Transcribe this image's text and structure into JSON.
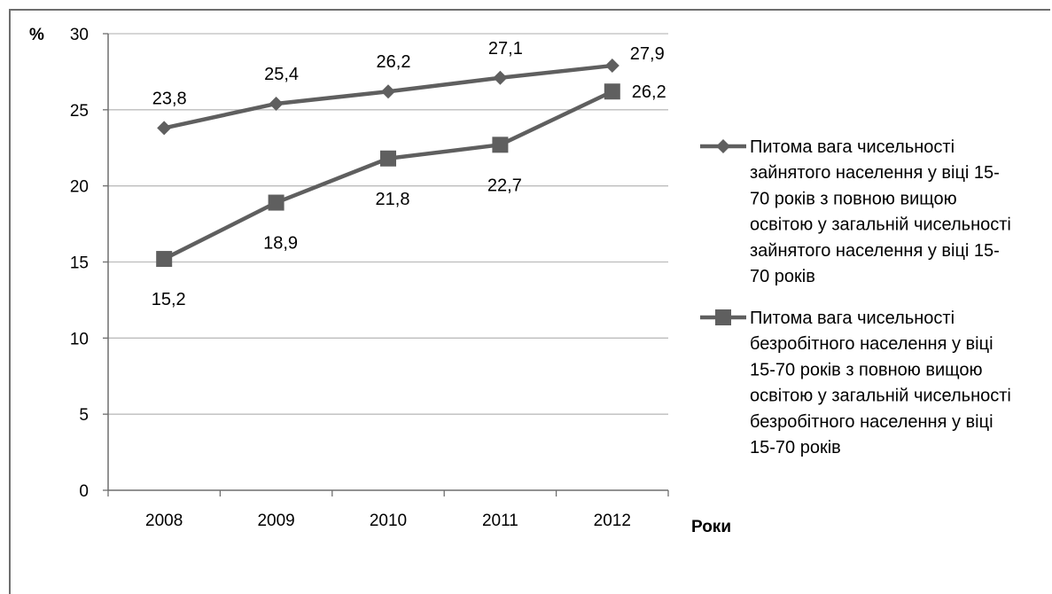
{
  "chart_data": {
    "type": "line",
    "categories": [
      "2008",
      "2009",
      "2010",
      "2011",
      "2012"
    ],
    "ylabel": "%",
    "xlabel": "Роки",
    "ylim": [
      0,
      30
    ],
    "yticks": [
      "0",
      "5",
      "10",
      "15",
      "20",
      "25",
      "30"
    ],
    "grid": true,
    "legend_position": "right",
    "series": [
      {
        "name": "Питома вага чисельності зайнятого населення у віці 15-70 років з повною вищою освітою у загальній чисельності зайнятого населення у віці 15-70 років",
        "legend_lines": [
          "Питома вага чисельності",
          "зайнятого населення у віці 15-",
          "70 років з повною вищою",
          "освітою у загальній чисельності",
          "зайнятого населення у віці 15-",
          "70 років"
        ],
        "values": [
          23.8,
          25.4,
          26.2,
          27.1,
          27.9
        ],
        "labels": [
          "23,8",
          "25,4",
          "26,2",
          "27,1",
          "27,9"
        ],
        "marker": "diamond",
        "color": "#5f5f5f"
      },
      {
        "name": "Питома вага чисельності безробітного населення у віці 15-70 років з повною вищою освітою у загальній чисельності безробітного населення у віці 15-70 років",
        "legend_lines": [
          "Питома вага чисельності",
          "безробітного населення у віці",
          "15-70 років з повною вищою",
          "освітою у загальній чисельності",
          "безробітного населення у віці",
          "15-70 років"
        ],
        "values": [
          15.2,
          18.9,
          21.8,
          22.7,
          26.2
        ],
        "labels": [
          "15,2",
          "18,9",
          "21,8",
          "22,7",
          "26,2"
        ],
        "marker": "square",
        "color": "#5f5f5f"
      }
    ]
  }
}
